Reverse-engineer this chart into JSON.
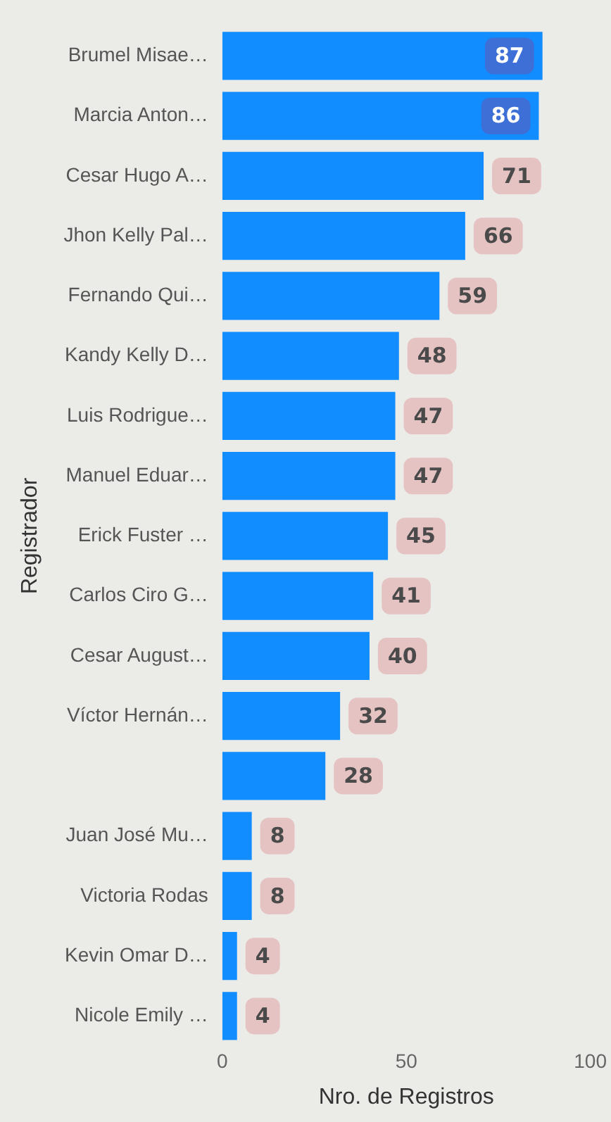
{
  "chart_data": {
    "type": "bar",
    "orientation": "horizontal",
    "xlabel": "Nro. de Registros",
    "ylabel": "Registrador",
    "categories": [
      "Brumel Misae…",
      "Marcia Anton…",
      "Cesar Hugo A…",
      "Jhon Kelly Pal…",
      "Fernando Qui…",
      "Kandy Kelly D…",
      "Luis Rodrigue…",
      "Manuel Eduar…",
      "Erick Fuster …",
      "Carlos Ciro G…",
      "Cesar August…",
      "Víctor Hernán…",
      null,
      "Juan José Mu…",
      "Victoria Rodas",
      "Kevin Omar D…",
      "Nicole Emily …"
    ],
    "values": [
      87,
      86,
      71,
      66,
      59,
      48,
      47,
      47,
      45,
      41,
      40,
      32,
      28,
      8,
      8,
      4,
      4
    ],
    "color": "#118dff",
    "xlim": [
      0,
      100
    ],
    "xticks": [
      0,
      50,
      100
    ],
    "grid": false,
    "legend": false,
    "data_labels": true
  }
}
